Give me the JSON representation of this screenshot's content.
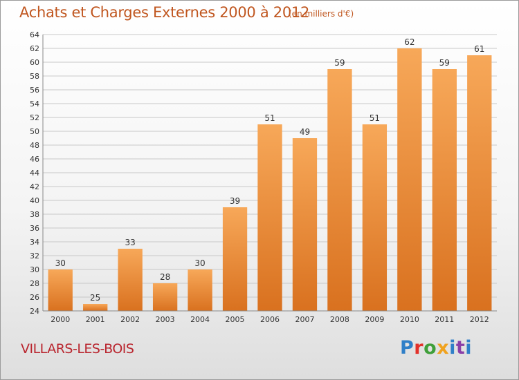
{
  "header": {
    "title": "Achats et Charges Externes 2000 à 2012",
    "unit": "(en milliers d'€)"
  },
  "footer": {
    "town": "VILLARS-LES-BOIS",
    "logo_letters": [
      "P",
      "r",
      "o",
      "x",
      "i",
      "t",
      "i"
    ]
  },
  "colors": {
    "bar_top": "#f7a859",
    "bar_bottom": "#d9711f",
    "grid": "#c8c8c8",
    "title": "#c0561f",
    "town": "#b9252e"
  },
  "chart_data": {
    "type": "bar",
    "title": "Achats et Charges Externes 2000 à 2012",
    "subtitle": "(en milliers d'€)",
    "categories": [
      "2000",
      "2001",
      "2002",
      "2003",
      "2004",
      "2005",
      "2006",
      "2007",
      "2008",
      "2009",
      "2010",
      "2011",
      "2012"
    ],
    "values": [
      30,
      25,
      33,
      28,
      30,
      39,
      51,
      49,
      59,
      51,
      62,
      59,
      61
    ],
    "ylim": [
      24,
      64
    ],
    "yticks": [
      24,
      26,
      28,
      30,
      32,
      34,
      36,
      38,
      40,
      42,
      44,
      46,
      48,
      50,
      52,
      54,
      56,
      58,
      60,
      62,
      64
    ],
    "grid": true,
    "data_labels": true
  }
}
